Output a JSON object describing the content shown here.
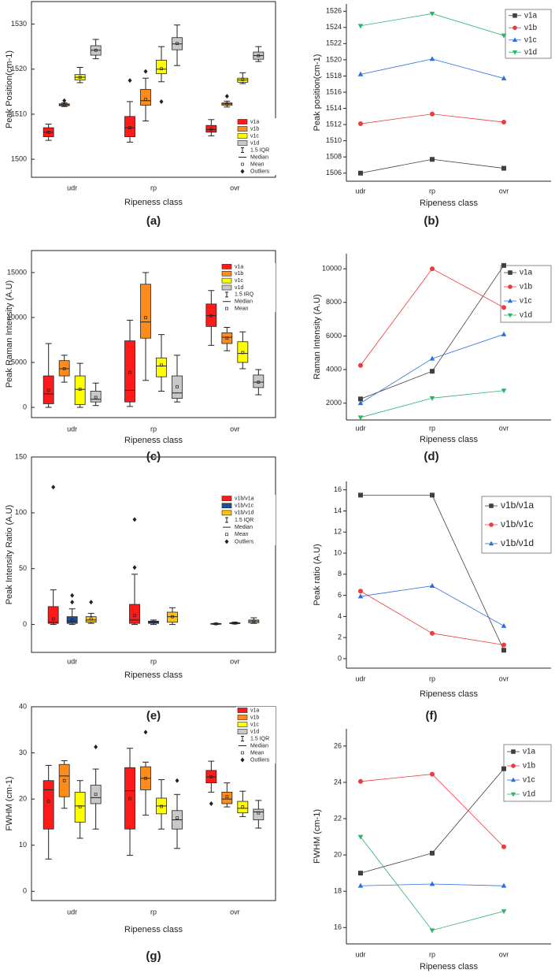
{
  "chart_data": [
    {
      "type": "box",
      "caption": "(a)",
      "y_label": "Peak Position(cm-1)",
      "x_label": "Ripeness class",
      "categories": [
        "udr",
        "rp",
        "ovr"
      ],
      "ylim": [
        1496,
        1535
      ],
      "yticks": [
        1500,
        1510,
        1520,
        1530
      ],
      "legend_items": [
        "1.5 IQR",
        "Median",
        "Mean",
        "Outliers"
      ],
      "series": [
        {
          "name": "ν1a",
          "color": "#ff1a1a",
          "boxes": [
            {
              "min": 1504.2,
              "q1": 1505,
              "median": 1506,
              "q3": 1507,
              "max": 1507.8,
              "mean": 1506
            },
            {
              "min": 1503.8,
              "q1": 1505,
              "median": 1507,
              "q3": 1509.5,
              "max": 1512.8,
              "mean": 1507,
              "outliers": [
                1517.5
              ]
            },
            {
              "min": 1505.2,
              "q1": 1506,
              "median": 1506.6,
              "q3": 1507.5,
              "max": 1508.8,
              "mean": 1506.6
            }
          ]
        },
        {
          "name": "ν1b",
          "color": "#ff8c1a",
          "boxes": [
            {
              "min": 1511.7,
              "q1": 1511.9,
              "median": 1512.1,
              "q3": 1512.3,
              "max": 1512.5,
              "mean": 1512.1,
              "outliers": [
                1513
              ]
            },
            {
              "min": 1508.5,
              "q1": 1512,
              "median": 1513,
              "q3": 1515.5,
              "max": 1518,
              "mean": 1513.3,
              "outliers": [
                1519.5
              ]
            },
            {
              "min": 1511.6,
              "q1": 1512,
              "median": 1512.3,
              "q3": 1512.5,
              "max": 1512.9,
              "mean": 1512.3,
              "outliers": [
                1514
              ]
            }
          ]
        },
        {
          "name": "ν1c",
          "color": "#ffff00",
          "boxes": [
            {
              "min": 1517,
              "q1": 1517.6,
              "median": 1518.2,
              "q3": 1518.8,
              "max": 1520.4,
              "mean": 1518.2
            },
            {
              "min": 1517.2,
              "q1": 1519,
              "median": 1520,
              "q3": 1522,
              "max": 1525,
              "mean": 1520.1,
              "outliers": [
                1512.8
              ]
            },
            {
              "min": 1516.8,
              "q1": 1517.1,
              "median": 1517.6,
              "q3": 1518,
              "max": 1519.2,
              "mean": 1517.7
            }
          ]
        },
        {
          "name": "ν1d",
          "color": "#c8c8c8",
          "boxes": [
            {
              "min": 1522.3,
              "q1": 1523.1,
              "median": 1524.2,
              "q3": 1525.2,
              "max": 1526.6,
              "mean": 1524.2
            },
            {
              "min": 1520.8,
              "q1": 1524.3,
              "median": 1525.6,
              "q3": 1527,
              "max": 1529.8,
              "mean": 1525.7
            },
            {
              "min": 1521.7,
              "q1": 1522.2,
              "median": 1523,
              "q3": 1523.8,
              "max": 1525,
              "mean": 1523
            }
          ]
        }
      ]
    },
    {
      "type": "line",
      "caption": "(b)",
      "y_label": "Peak position(cm-1)",
      "x_label": "Ripeness class",
      "categories": [
        "udr",
        "rp",
        "ovr"
      ],
      "ylim": [
        1505,
        1526.9
      ],
      "yticks": [
        1506,
        1508,
        1510,
        1512,
        1514,
        1516,
        1518,
        1520,
        1522,
        1524,
        1526
      ],
      "series": [
        {
          "name": "ν1a",
          "color": "#404040",
          "marker": "square",
          "values": [
            1506,
            1507.7,
            1506.6
          ]
        },
        {
          "name": "ν1b",
          "color": "#ee3a3a",
          "marker": "circle",
          "values": [
            1512.1,
            1513.3,
            1512.3
          ]
        },
        {
          "name": "ν1c",
          "color": "#2a6fdb",
          "marker": "triangle-up",
          "values": [
            1518.2,
            1520.1,
            1517.7
          ]
        },
        {
          "name": "ν1d",
          "color": "#2fb26a",
          "marker": "triangle-down",
          "values": [
            1524.2,
            1525.7,
            1523
          ]
        }
      ]
    },
    {
      "type": "box",
      "caption": "(c)",
      "y_label": "Peak Raman Intensity (A.U)",
      "x_label": "Ripeness class",
      "categories": [
        "udr",
        "rp",
        "ovr"
      ],
      "ylim": [
        -1140,
        17450
      ],
      "yticks": [
        0,
        5000,
        10000,
        15000
      ],
      "legend_items": [
        "1.5 IRQ",
        "Median",
        "Mean"
      ],
      "series": [
        {
          "name": "ν1a",
          "color": "#ff1a1a",
          "boxes": [
            {
              "min": 0,
              "q1": 400,
              "median": 1500,
              "q3": 3500,
              "max": 7100,
              "mean": 1900
            },
            {
              "min": 100,
              "q1": 600,
              "median": 1900,
              "q3": 7400,
              "max": 9700,
              "mean": 3900
            },
            {
              "min": 6900,
              "q1": 9000,
              "median": 10200,
              "q3": 11500,
              "max": 13000,
              "mean": 10200
            }
          ]
        },
        {
          "name": "ν1b",
          "color": "#ff8c1a",
          "boxes": [
            {
              "min": 2800,
              "q1": 3500,
              "median": 4300,
              "q3": 5200,
              "max": 5800,
              "mean": 4300
            },
            {
              "min": 3000,
              "q1": 7700,
              "median": 9500,
              "q3": 13700,
              "max": 15000,
              "mean": 10000
            },
            {
              "min": 6300,
              "q1": 7100,
              "median": 7800,
              "q3": 8300,
              "max": 8900,
              "mean": 7700
            }
          ]
        },
        {
          "name": "ν1c",
          "color": "#ffff00",
          "boxes": [
            {
              "min": 0,
              "q1": 300,
              "median": 2000,
              "q3": 3500,
              "max": 4900,
              "mean": 2000
            },
            {
              "min": 1800,
              "q1": 3400,
              "median": 4600,
              "q3": 5500,
              "max": 8100,
              "mean": 4700
            },
            {
              "min": 4300,
              "q1": 5000,
              "median": 6000,
              "q3": 7300,
              "max": 8400,
              "mean": 6100
            }
          ]
        },
        {
          "name": "ν1d",
          "color": "#c8c8c8",
          "boxes": [
            {
              "min": 200,
              "q1": 600,
              "median": 900,
              "q3": 1800,
              "max": 2700,
              "mean": 1100
            },
            {
              "min": 600,
              "q1": 1000,
              "median": 1600,
              "q3": 3500,
              "max": 5800,
              "mean": 2300
            },
            {
              "min": 1400,
              "q1": 2200,
              "median": 2800,
              "q3": 3600,
              "max": 4200,
              "mean": 2800
            }
          ]
        }
      ]
    },
    {
      "type": "line",
      "caption": "(d)",
      "y_label": "Raman Intensity (A.U)",
      "x_label": "Ripeness class",
      "categories": [
        "udr",
        "rp",
        "ovr"
      ],
      "ylim": [
        1000,
        10900
      ],
      "yticks": [
        2000,
        4000,
        6000,
        8000,
        10000
      ],
      "series": [
        {
          "name": "ν1a",
          "color": "#404040",
          "marker": "square",
          "values": [
            2250,
            3900,
            10200
          ]
        },
        {
          "name": "ν1b",
          "color": "#ee3a3a",
          "marker": "circle",
          "values": [
            4250,
            10000,
            7700
          ]
        },
        {
          "name": "ν1c",
          "color": "#2a6fdb",
          "marker": "triangle-up",
          "values": [
            2000,
            4650,
            6100
          ]
        },
        {
          "name": "ν1d",
          "color": "#2fb26a",
          "marker": "triangle-down",
          "values": [
            1150,
            2300,
            2750
          ]
        }
      ]
    },
    {
      "type": "box",
      "caption": "(e)",
      "y_label": "Peak Intensity Ratio (A.U)",
      "x_label": "Ripeness class",
      "categories": [
        "udr",
        "rp",
        "ovr"
      ],
      "ylim": [
        -25,
        150
      ],
      "yticks": [
        0,
        50,
        100,
        150
      ],
      "legend_items": [
        "1.5 IQR",
        "Median",
        "Mean",
        "Outliers"
      ],
      "series": [
        {
          "name": "ν1b/ν1a",
          "color": "#ff1a1a",
          "boxes": [
            {
              "min": 0,
              "q1": 1,
              "median": 2,
              "q3": 16,
              "max": 31,
              "mean": 5,
              "outliers": [
                123
              ]
            },
            {
              "min": 0,
              "q1": 1,
              "median": 4,
              "q3": 18,
              "max": 45,
              "mean": 8,
              "outliers": [
                51,
                94
              ]
            },
            {
              "min": 0,
              "q1": 0.3,
              "median": 0.6,
              "q3": 0.9,
              "max": 1,
              "mean": 0.6
            }
          ]
        },
        {
          "name": "ν1b/ν1c",
          "color": "#1f4e9c",
          "boxes": [
            {
              "min": 0,
              "q1": 1,
              "median": 3,
              "q3": 7,
              "max": 14,
              "mean": 4,
              "outliers": [
                20,
                26
              ]
            },
            {
              "min": 0,
              "q1": 1,
              "median": 2,
              "q3": 3,
              "max": 4,
              "mean": 2
            },
            {
              "min": 0.5,
              "q1": 0.8,
              "median": 1.2,
              "q3": 1.5,
              "max": 2,
              "mean": 1.2
            }
          ]
        },
        {
          "name": "ν1b/ν1d",
          "color": "#ffc20e",
          "boxes": [
            {
              "min": 1,
              "q1": 2,
              "median": 4,
              "q3": 7,
              "max": 10,
              "mean": 5,
              "outliers": [
                20
              ]
            },
            {
              "min": 0,
              "q1": 2,
              "median": 7,
              "q3": 11,
              "max": 15,
              "mean": 7
            },
            {
              "min": 1,
              "q1": 1.5,
              "median": 3,
              "q3": 4,
              "max": 6,
              "mean": 3
            }
          ]
        }
      ]
    },
    {
      "type": "line",
      "caption": "(f)",
      "y_label": "Peak ratio (A.U)",
      "x_label": "Ripeness class",
      "categories": [
        "udr",
        "rp",
        "ovr"
      ],
      "ylim": [
        -0.9,
        16.8
      ],
      "yticks": [
        0,
        2,
        4,
        6,
        8,
        10,
        12,
        14,
        16
      ],
      "legend_large": true,
      "series": [
        {
          "name": "ν1b/ν1a",
          "color": "#404040",
          "marker": "square",
          "values": [
            15.5,
            15.5,
            0.8
          ]
        },
        {
          "name": "ν1b/ν1c",
          "color": "#ee3a3a",
          "marker": "circle",
          "values": [
            6.4,
            2.4,
            1.3
          ]
        },
        {
          "name": "ν1b/ν1d",
          "color": "#2a6fdb",
          "marker": "triangle-up",
          "values": [
            5.9,
            6.9,
            3.1
          ]
        }
      ]
    },
    {
      "type": "box",
      "caption": "(g)",
      "y_label": "FWHM (cm-1)",
      "x_label": "Ripeness class",
      "categories": [
        "udr",
        "rp",
        "ovr"
      ],
      "ylim": [
        -2,
        40
      ],
      "yticks": [
        0,
        10,
        20,
        30,
        40
      ],
      "legend_items": [
        "1.5 IQR",
        "Median",
        "Mean",
        "Outliers"
      ],
      "series": [
        {
          "name": "ν1a",
          "color": "#ff1a1a",
          "boxes": [
            {
              "min": 7,
              "q1": 13.5,
              "median": 22,
              "q3": 24,
              "max": 27.3,
              "mean": 19.5
            },
            {
              "min": 7.8,
              "q1": 13.5,
              "median": 21.8,
              "q3": 26.8,
              "max": 31,
              "mean": 20.1
            },
            {
              "min": 21.5,
              "q1": 23.5,
              "median": 24.8,
              "q3": 26.2,
              "max": 28.2,
              "mean": 24.8,
              "outliers": [
                19
              ]
            }
          ]
        },
        {
          "name": "ν1b",
          "color": "#ff8c1a",
          "boxes": [
            {
              "min": 18,
              "q1": 20.5,
              "median": 25,
              "q3": 27.5,
              "max": 28.3,
              "mean": 24
            },
            {
              "min": 16.5,
              "q1": 22,
              "median": 24.5,
              "q3": 27,
              "max": 28,
              "mean": 24.5,
              "outliers": [
                34.5
              ]
            },
            {
              "min": 18.3,
              "q1": 19,
              "median": 20,
              "q3": 21.5,
              "max": 23.5,
              "mean": 20.5
            }
          ]
        },
        {
          "name": "ν1c",
          "color": "#ffff00",
          "boxes": [
            {
              "min": 11.5,
              "q1": 15,
              "median": 18.5,
              "q3": 21.5,
              "max": 24,
              "mean": 18.3
            },
            {
              "min": 13.5,
              "q1": 16.8,
              "median": 18.5,
              "q3": 20.2,
              "max": 24.2,
              "mean": 18.4
            },
            {
              "min": 16.2,
              "q1": 17,
              "median": 18,
              "q3": 19.5,
              "max": 21.7,
              "mean": 18.3
            }
          ]
        },
        {
          "name": "ν1d",
          "color": "#c8c8c8",
          "boxes": [
            {
              "min": 13.5,
              "q1": 19,
              "median": 20.3,
              "q3": 23,
              "max": 26.5,
              "mean": 21,
              "outliers": [
                31.3
              ]
            },
            {
              "min": 9.3,
              "q1": 13.5,
              "median": 15.5,
              "q3": 17.5,
              "max": 21,
              "mean": 15.9,
              "outliers": [
                24
              ]
            },
            {
              "min": 13.7,
              "q1": 15.5,
              "median": 17.2,
              "q3": 17.8,
              "max": 19.7,
              "mean": 17
            }
          ]
        }
      ]
    },
    {
      "type": "line",
      "y_label": "FWHM (cm-1)",
      "x_label": "Ripeness class",
      "categories": [
        "udr",
        "rp",
        "ovr"
      ],
      "ylim": [
        15.1,
        26.95
      ],
      "yticks": [
        16,
        18,
        20,
        22,
        24,
        26
      ],
      "series": [
        {
          "name": "ν1a",
          "color": "#404040",
          "marker": "square",
          "values": [
            19,
            20.1,
            24.75
          ]
        },
        {
          "name": "ν1b",
          "color": "#ee3a3a",
          "marker": "circle",
          "values": [
            24.05,
            24.45,
            20.45
          ]
        },
        {
          "name": "ν1c",
          "color": "#2a6fdb",
          "marker": "triangle-up",
          "values": [
            18.3,
            18.4,
            18.3
          ]
        },
        {
          "name": "ν1d",
          "color": "#2fb26a",
          "marker": "triangle-down",
          "values": [
            21,
            15.85,
            16.9
          ]
        }
      ]
    }
  ]
}
